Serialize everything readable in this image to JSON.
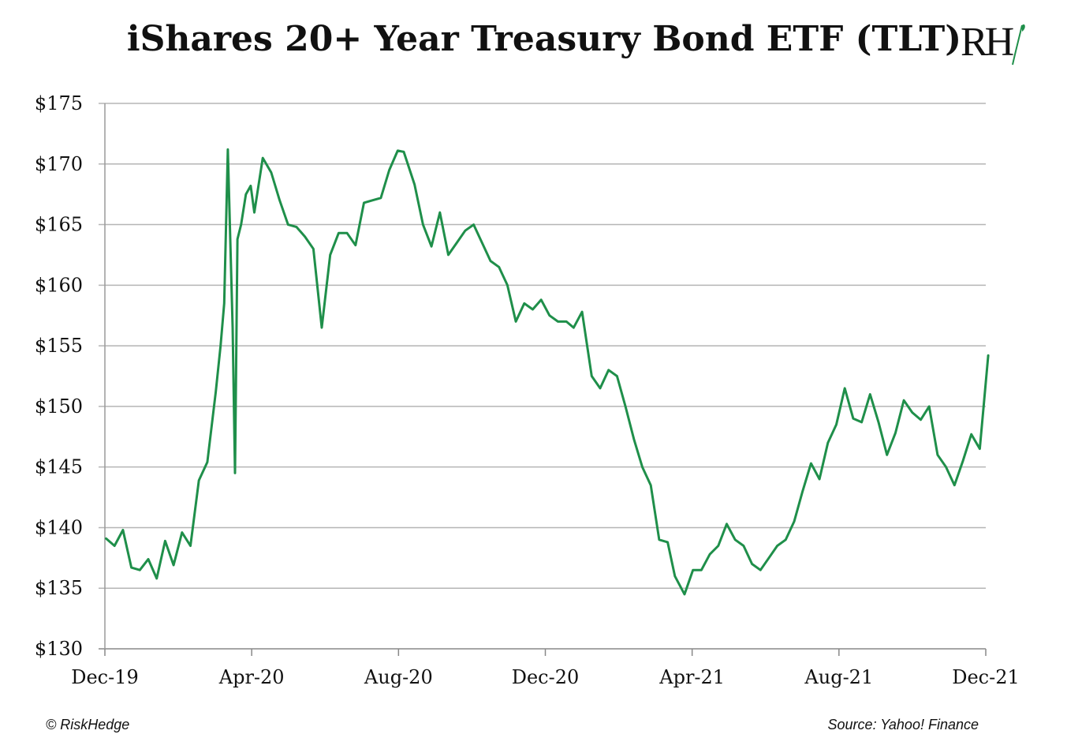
{
  "chart_data": {
    "type": "line",
    "title": "iShares 20+ Year Treasury Bond ETF (TLT)",
    "xlabel": "",
    "ylabel": "",
    "ylim": [
      130,
      175
    ],
    "yticks": [
      "$130",
      "$135",
      "$140",
      "$145",
      "$150",
      "$155",
      "$160",
      "$165",
      "$170",
      "$175"
    ],
    "xtick_labels": [
      "Dec-19",
      "Apr-20",
      "Aug-20",
      "Dec-20",
      "Apr-21",
      "Aug-21",
      "Dec-21"
    ],
    "grid": "horizontal",
    "line_color": "#1f8f4a",
    "series": [
      {
        "x": [
          "2019-12-02",
          "2019-12-09",
          "2019-12-16",
          "2019-12-23",
          "2019-12-30",
          "2020-01-06",
          "2020-01-13",
          "2020-01-20",
          "2020-01-27",
          "2020-02-03",
          "2020-02-10",
          "2020-02-17",
          "2020-02-24",
          "2020-03-02",
          "2020-03-06",
          "2020-03-09",
          "2020-03-12",
          "2020-03-16",
          "2020-03-18",
          "2020-03-20",
          "2020-03-23",
          "2020-03-27",
          "2020-03-31",
          "2020-04-03",
          "2020-04-10",
          "2020-04-17",
          "2020-04-24",
          "2020-05-01",
          "2020-05-08",
          "2020-05-15",
          "2020-05-22",
          "2020-05-29",
          "2020-06-05",
          "2020-06-12",
          "2020-06-19",
          "2020-06-26",
          "2020-07-03",
          "2020-07-10",
          "2020-07-17",
          "2020-07-24",
          "2020-07-31",
          "2020-08-05",
          "2020-08-14",
          "2020-08-21",
          "2020-08-28",
          "2020-09-04",
          "2020-09-11",
          "2020-09-18",
          "2020-09-25",
          "2020-10-02",
          "2020-10-09",
          "2020-10-16",
          "2020-10-23",
          "2020-10-30",
          "2020-11-06",
          "2020-11-13",
          "2020-11-20",
          "2020-11-27",
          "2020-12-04",
          "2020-12-11",
          "2020-12-18",
          "2020-12-24",
          "2020-12-31",
          "2021-01-08",
          "2021-01-15",
          "2021-01-22",
          "2021-01-29",
          "2021-02-05",
          "2021-02-12",
          "2021-02-19",
          "2021-02-26",
          "2021-03-05",
          "2021-03-12",
          "2021-03-18",
          "2021-03-26",
          "2021-04-02",
          "2021-04-09",
          "2021-04-16",
          "2021-04-23",
          "2021-04-30",
          "2021-05-07",
          "2021-05-14",
          "2021-05-21",
          "2021-05-28",
          "2021-06-04",
          "2021-06-11",
          "2021-06-18",
          "2021-06-25",
          "2021-07-02",
          "2021-07-09",
          "2021-07-16",
          "2021-07-23",
          "2021-07-30",
          "2021-08-06",
          "2021-08-13",
          "2021-08-20",
          "2021-08-27",
          "2021-09-03",
          "2021-09-10",
          "2021-09-17",
          "2021-09-24",
          "2021-10-01",
          "2021-10-08",
          "2021-10-15",
          "2021-10-22",
          "2021-10-29",
          "2021-11-05",
          "2021-11-12",
          "2021-11-19",
          "2021-11-26",
          "2021-12-03"
        ],
        "values": [
          139.1,
          138.5,
          139.8,
          136.7,
          136.5,
          137.4,
          135.8,
          138.9,
          136.9,
          139.6,
          138.5,
          143.9,
          145.4,
          151.2,
          155.0,
          158.5,
          171.2,
          156.5,
          144.5,
          163.8,
          165.0,
          167.5,
          168.2,
          166.0,
          170.5,
          169.3,
          167.0,
          165.0,
          164.8,
          164.0,
          163.0,
          156.5,
          162.5,
          164.3,
          164.3,
          163.3,
          166.8,
          167.0,
          167.2,
          169.5,
          171.1,
          171.0,
          168.3,
          165.0,
          163.2,
          166.0,
          162.5,
          163.5,
          164.5,
          165.0,
          163.5,
          162.0,
          161.5,
          160.0,
          157.0,
          158.5,
          158.0,
          158.8,
          157.5,
          157.0,
          157.0,
          156.5,
          157.8,
          152.5,
          151.5,
          153.0,
          152.5,
          150.0,
          147.3,
          145.0,
          143.5,
          139.0,
          138.8,
          136.0,
          134.5,
          136.5,
          136.5,
          137.8,
          138.5,
          140.3,
          139.0,
          138.5,
          137.0,
          136.5,
          137.5,
          138.5,
          139.0,
          140.5,
          143.0,
          145.3,
          144.0,
          147.0,
          148.5,
          151.5,
          149.0,
          148.7,
          151.0,
          148.7,
          146.0,
          147.8,
          150.5,
          149.5,
          148.9,
          150.0,
          146.0,
          145.0,
          143.5,
          145.5,
          147.7,
          146.5,
          154.2
        ]
      }
    ]
  },
  "footer": {
    "credit": "© RiskHedge",
    "source": "Source: Yahoo! Finance"
  },
  "logo": {
    "text": "RH"
  }
}
